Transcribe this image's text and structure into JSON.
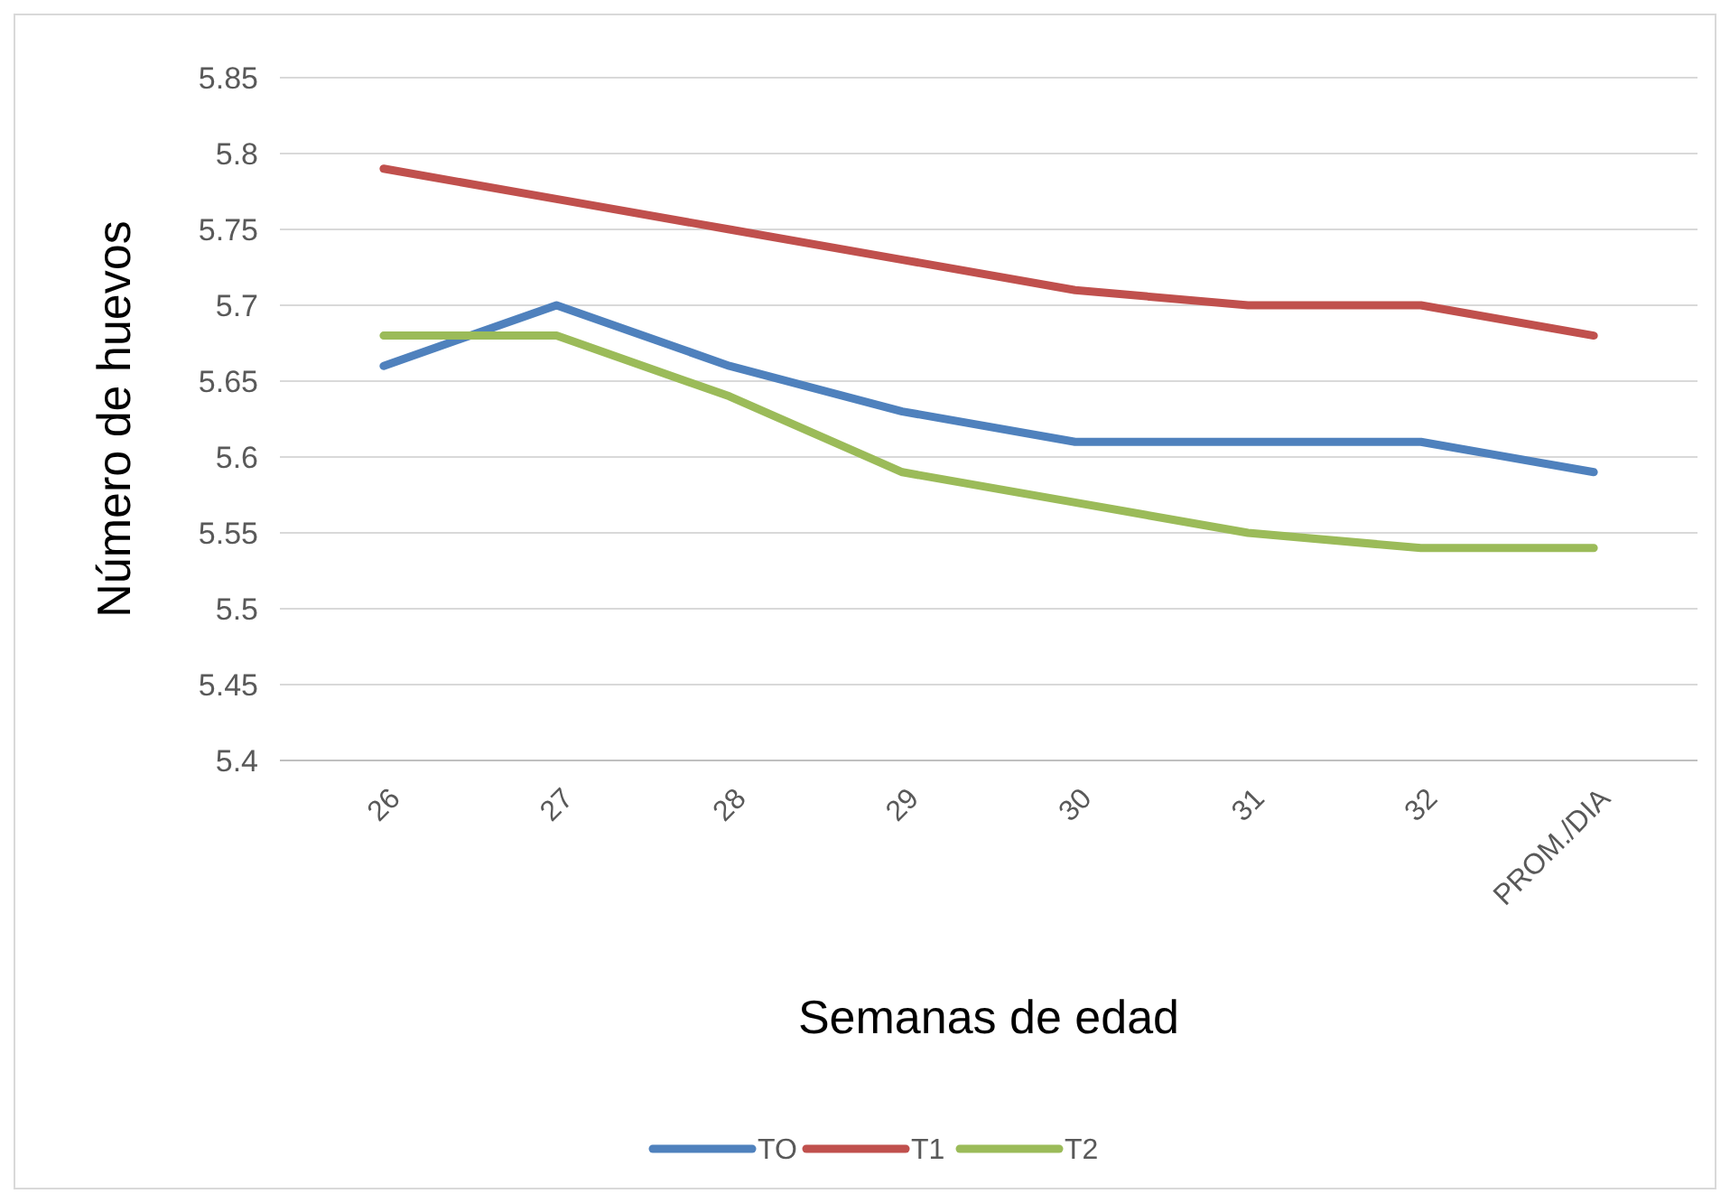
{
  "chart_data": {
    "type": "line",
    "xlabel": "Semanas de edad",
    "ylabel": "Número de huevos",
    "categories": [
      "26",
      "27",
      "28",
      "29",
      "30",
      "31",
      "32",
      "PROM./DIA"
    ],
    "series": [
      {
        "name": "TO",
        "color": "#4f81bd",
        "values": [
          5.66,
          5.7,
          5.66,
          5.63,
          5.61,
          5.61,
          5.61,
          5.59
        ]
      },
      {
        "name": "T1",
        "color": "#c0504d",
        "values": [
          5.79,
          5.77,
          5.75,
          5.73,
          5.71,
          5.7,
          5.7,
          5.68
        ]
      },
      {
        "name": "T2",
        "color": "#9bbb59",
        "values": [
          5.68,
          5.68,
          5.64,
          5.59,
          5.57,
          5.55,
          5.54,
          5.54
        ]
      }
    ],
    "ylim": [
      5.4,
      5.85
    ],
    "yticks": [
      5.4,
      5.45,
      5.5,
      5.55,
      5.6,
      5.65,
      5.7,
      5.75,
      5.8,
      5.85
    ],
    "grid": "y",
    "legend": "bottom",
    "marker": "none",
    "line_style": "solid"
  }
}
